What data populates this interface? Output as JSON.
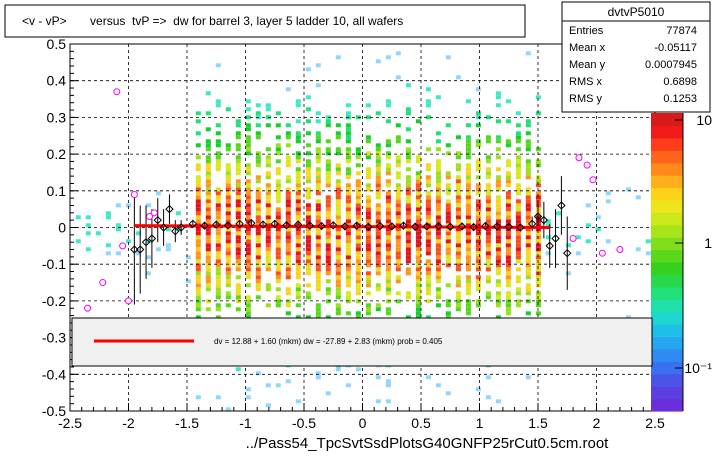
{
  "title": "<v - vP>       versus  tvP =>  dw for barrel 3, layer 5 ladder 10, all wafers",
  "footer": "../Pass54_TpcSvtSsdPlotsG40GNFP25rCut0.5cm.root",
  "stats": {
    "name": "dvtvP5010",
    "rows": [
      {
        "label": "Entries",
        "value": "77874"
      },
      {
        "label": "Mean x",
        "value": "-0.05117"
      },
      {
        "label": "Mean y",
        "value": "0.0007945"
      },
      {
        "label": "RMS x",
        "value": "0.6898"
      },
      {
        "label": "RMS y",
        "value": "0.1253"
      }
    ]
  },
  "fit_legend": "dv =    12.88 +   1.60 (mkm) dw =  -27.89 +   2.83 (mkm) prob = 0.405",
  "colors": {
    "fit_line": "#ff0000",
    "profile_marker": "#000000",
    "outlier_marker": "#ff00ff",
    "grid": "#000000"
  },
  "chart_data": {
    "type": "heatmap",
    "xlim": [
      -2.5,
      2.5
    ],
    "ylim": [
      -0.5,
      0.5
    ],
    "x_ticks": [
      "-2.5",
      "-2",
      "-1.5",
      "-1",
      "-0.5",
      "0",
      "0.5",
      "1",
      "1.5",
      "2",
      "2.5"
    ],
    "y_ticks": [
      "-0.5",
      "-0.4",
      "-0.3",
      "-0.2",
      "-0.1",
      "0",
      "0.1",
      "0.2",
      "0.3",
      "0.4",
      "0.5"
    ],
    "z_scale": "log",
    "z_ticks": [
      "10",
      "1",
      "10⁻¹"
    ],
    "grid": true,
    "density_band": {
      "x_range": [
        -1.5,
        1.5
      ],
      "y_center": 0.0,
      "y_spread": 0.18
    },
    "fit_line": {
      "x": [
        -1.95,
        1.6
      ],
      "y": [
        0.005,
        0.0
      ]
    },
    "profile_points": [
      {
        "x": -1.95,
        "y": -0.06,
        "err": 0.15
      },
      {
        "x": -1.9,
        "y": -0.06,
        "err": 0.12
      },
      {
        "x": -1.85,
        "y": -0.04,
        "err": 0.1
      },
      {
        "x": -1.8,
        "y": -0.03,
        "err": 0.08
      },
      {
        "x": -1.75,
        "y": 0.02,
        "err": 0.06
      },
      {
        "x": -1.7,
        "y": 0.0,
        "err": 0.05
      },
      {
        "x": -1.65,
        "y": 0.05,
        "err": 0.04
      },
      {
        "x": -1.6,
        "y": -0.01,
        "err": 0.03
      },
      {
        "x": -1.55,
        "y": 0.0,
        "err": 0.02
      },
      {
        "x": -1.45,
        "y": 0.01,
        "err": 0.01
      },
      {
        "x": -1.35,
        "y": 0.005,
        "err": 0.01
      },
      {
        "x": -1.25,
        "y": 0.008,
        "err": 0.01
      },
      {
        "x": -1.15,
        "y": 0.006,
        "err": 0.01
      },
      {
        "x": -1.05,
        "y": 0.01,
        "err": 0.01
      },
      {
        "x": -0.95,
        "y": 0.012,
        "err": 0.01
      },
      {
        "x": -0.85,
        "y": 0.008,
        "err": 0.01
      },
      {
        "x": -0.75,
        "y": 0.01,
        "err": 0.01
      },
      {
        "x": -0.65,
        "y": 0.006,
        "err": 0.01
      },
      {
        "x": -0.55,
        "y": 0.008,
        "err": 0.01
      },
      {
        "x": -0.45,
        "y": 0.005,
        "err": 0.01
      },
      {
        "x": -0.35,
        "y": 0.004,
        "err": 0.01
      },
      {
        "x": -0.25,
        "y": 0.006,
        "err": 0.01
      },
      {
        "x": -0.15,
        "y": 0.003,
        "err": 0.01
      },
      {
        "x": -0.05,
        "y": 0.005,
        "err": 0.01
      },
      {
        "x": 0.05,
        "y": 0.002,
        "err": 0.01
      },
      {
        "x": 0.15,
        "y": 0.004,
        "err": 0.01
      },
      {
        "x": 0.25,
        "y": 0.003,
        "err": 0.01
      },
      {
        "x": 0.35,
        "y": 0.005,
        "err": 0.01
      },
      {
        "x": 0.45,
        "y": 0.002,
        "err": 0.01
      },
      {
        "x": 0.55,
        "y": 0.003,
        "err": 0.01
      },
      {
        "x": 0.65,
        "y": 0.004,
        "err": 0.01
      },
      {
        "x": 0.75,
        "y": 0.002,
        "err": 0.01
      },
      {
        "x": 0.85,
        "y": 0.003,
        "err": 0.01
      },
      {
        "x": 0.95,
        "y": 0.001,
        "err": 0.01
      },
      {
        "x": 1.05,
        "y": 0.004,
        "err": 0.01
      },
      {
        "x": 1.15,
        "y": 0.003,
        "err": 0.01
      },
      {
        "x": 1.25,
        "y": 0.002,
        "err": 0.01
      },
      {
        "x": 1.35,
        "y": 0.0,
        "err": 0.01
      },
      {
        "x": 1.45,
        "y": 0.01,
        "err": 0.02
      },
      {
        "x": 1.5,
        "y": 0.03,
        "err": 0.04
      },
      {
        "x": 1.55,
        "y": 0.02,
        "err": 0.05
      },
      {
        "x": 1.6,
        "y": -0.05,
        "err": 0.06
      },
      {
        "x": 1.65,
        "y": -0.03,
        "err": 0.08
      },
      {
        "x": 1.7,
        "y": 0.06,
        "err": 0.08
      },
      {
        "x": 1.75,
        "y": -0.07,
        "err": 0.1
      }
    ],
    "outlier_points": [
      {
        "x": -2.35,
        "y": -0.22
      },
      {
        "x": -2.22,
        "y": -0.15
      },
      {
        "x": -2.1,
        "y": 0.37
      },
      {
        "x": -2.05,
        "y": -0.05
      },
      {
        "x": -2.0,
        "y": -0.2
      },
      {
        "x": -1.95,
        "y": 0.09
      },
      {
        "x": -1.82,
        "y": 0.03
      },
      {
        "x": -1.78,
        "y": 0.04
      },
      {
        "x": 1.8,
        "y": -0.03
      },
      {
        "x": 1.85,
        "y": 0.19
      },
      {
        "x": 1.92,
        "y": 0.17
      },
      {
        "x": 1.97,
        "y": 0.13
      },
      {
        "x": 2.05,
        "y": -0.07
      },
      {
        "x": 2.2,
        "y": -0.06
      }
    ]
  }
}
